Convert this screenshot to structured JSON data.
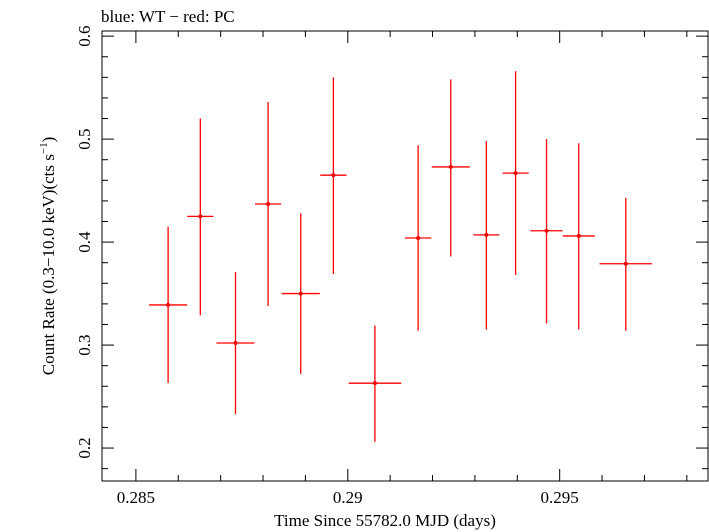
{
  "chart_data": {
    "type": "scatter",
    "title": "blue: WT − red: PC",
    "xlabel": "Time Since 55782.0 MJD (days)",
    "ylabel_main": "Count Rate (0.3−10.0 keV)(cts s",
    "ylabel_sup": "−1",
    "ylabel_close": ")",
    "xlim": [
      0.2842,
      0.2985
    ],
    "ylim": [
      0.168,
      0.605
    ],
    "x_ticks_major": [
      0.285,
      0.29,
      0.295
    ],
    "x_tick_labels": [
      "0.285",
      "0.29",
      "0.295"
    ],
    "y_ticks_major": [
      0.2,
      0.3,
      0.4,
      0.5,
      0.6
    ],
    "y_tick_labels": [
      "0.2",
      "0.3",
      "0.4",
      "0.5",
      "0.6"
    ],
    "grid": false,
    "series": [
      {
        "color": "#ff0000",
        "points": [
          {
            "x": 0.28576,
            "xerr": 0.00045,
            "y": 0.339,
            "ylo": 0.263,
            "yhi": 0.415
          },
          {
            "x": 0.28652,
            "xerr": 0.00031,
            "y": 0.425,
            "ylo": 0.329,
            "yhi": 0.52
          },
          {
            "x": 0.28735,
            "xerr": 0.00045,
            "y": 0.302,
            "ylo": 0.233,
            "yhi": 0.371
          },
          {
            "x": 0.28812,
            "xerr": 0.00031,
            "y": 0.437,
            "ylo": 0.338,
            "yhi": 0.536
          },
          {
            "x": 0.28889,
            "xerr": 0.00045,
            "y": 0.35,
            "ylo": 0.272,
            "yhi": 0.428
          },
          {
            "x": 0.28966,
            "xerr": 0.00031,
            "y": 0.465,
            "ylo": 0.369,
            "yhi": 0.56
          },
          {
            "x": 0.29064,
            "xerr": 0.00062,
            "y": 0.263,
            "ylo": 0.206,
            "yhi": 0.319
          },
          {
            "x": 0.29166,
            "xerr": 0.00031,
            "y": 0.404,
            "ylo": 0.314,
            "yhi": 0.494
          },
          {
            "x": 0.29243,
            "xerr": 0.00045,
            "y": 0.473,
            "ylo": 0.386,
            "yhi": 0.558
          },
          {
            "x": 0.29327,
            "xerr": 0.00031,
            "y": 0.407,
            "ylo": 0.315,
            "yhi": 0.498
          },
          {
            "x": 0.29396,
            "xerr": 0.00031,
            "y": 0.467,
            "ylo": 0.368,
            "yhi": 0.566
          },
          {
            "x": 0.29469,
            "xerr": 0.00038,
            "y": 0.411,
            "ylo": 0.321,
            "yhi": 0.5
          },
          {
            "x": 0.29545,
            "xerr": 0.00038,
            "y": 0.406,
            "ylo": 0.315,
            "yhi": 0.496
          },
          {
            "x": 0.29656,
            "xerr": 0.00062,
            "y": 0.379,
            "ylo": 0.314,
            "yhi": 0.443
          }
        ]
      }
    ]
  }
}
